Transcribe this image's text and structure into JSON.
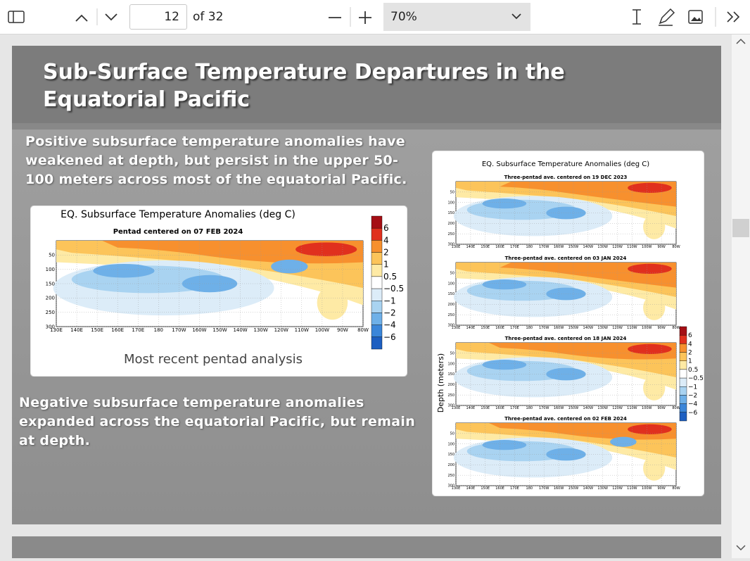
{
  "toolbar": {
    "page_number": "12",
    "page_total": "of 32",
    "zoom": "70%"
  },
  "slide": {
    "title": "Sub-Surface Temperature Departures in the Equatorial Pacific",
    "paragraph_1": "Positive subsurface temperature anomalies have weakened at depth, but persist in the upper 50-100 meters across most of the equatorial Pacific.",
    "paragraph_2": "Negative subsurface temperature anomalies expanded across the equatorial Pacific, but remain at depth.",
    "main_chart": {
      "title": "EQ. Subsurface Temperature Anomalies (deg C)",
      "subtitle": "Pentad centered on 07 FEB 2024",
      "x_labels": [
        "130E",
        "140E",
        "150E",
        "160E",
        "170E",
        "180",
        "170W",
        "160W",
        "150W",
        "140W",
        "130W",
        "120W",
        "110W",
        "100W",
        "90W",
        "80W"
      ],
      "y_labels": [
        "50",
        "100",
        "150",
        "200",
        "250",
        "300"
      ],
      "colorbar_labels": [
        "6",
        "4",
        "2",
        "1",
        "0.5",
        "−0.5",
        "−1",
        "−2",
        "−4",
        "−6"
      ],
      "caption": "Most recent pentad analysis"
    },
    "panel_chart": {
      "title": "EQ. Subsurface Temperature Anomalies (deg C)",
      "y_axis_label": "Depth (meters)",
      "panels": [
        "Three-pentad ave. centered on 19 DEC 2023",
        "Three-pentad ave. centered on 03 JAN 2024",
        "Three-pentad ave. centered on 18 JAN 2024",
        "Three-pentad ave. centered on 02 FEB 2024"
      ],
      "x_labels": [
        "130E",
        "140E",
        "150E",
        "160E",
        "170E",
        "180",
        "170W",
        "160W",
        "150W",
        "140W",
        "130W",
        "120W",
        "110W",
        "100W",
        "90W",
        "80W"
      ],
      "y_labels": [
        "50",
        "100",
        "150",
        "200",
        "250",
        "300"
      ],
      "colorbar_labels": [
        "6",
        "4",
        "2",
        "1",
        "0.5",
        "−0.5",
        "−1",
        "−2",
        "−4",
        "−6"
      ]
    }
  }
}
